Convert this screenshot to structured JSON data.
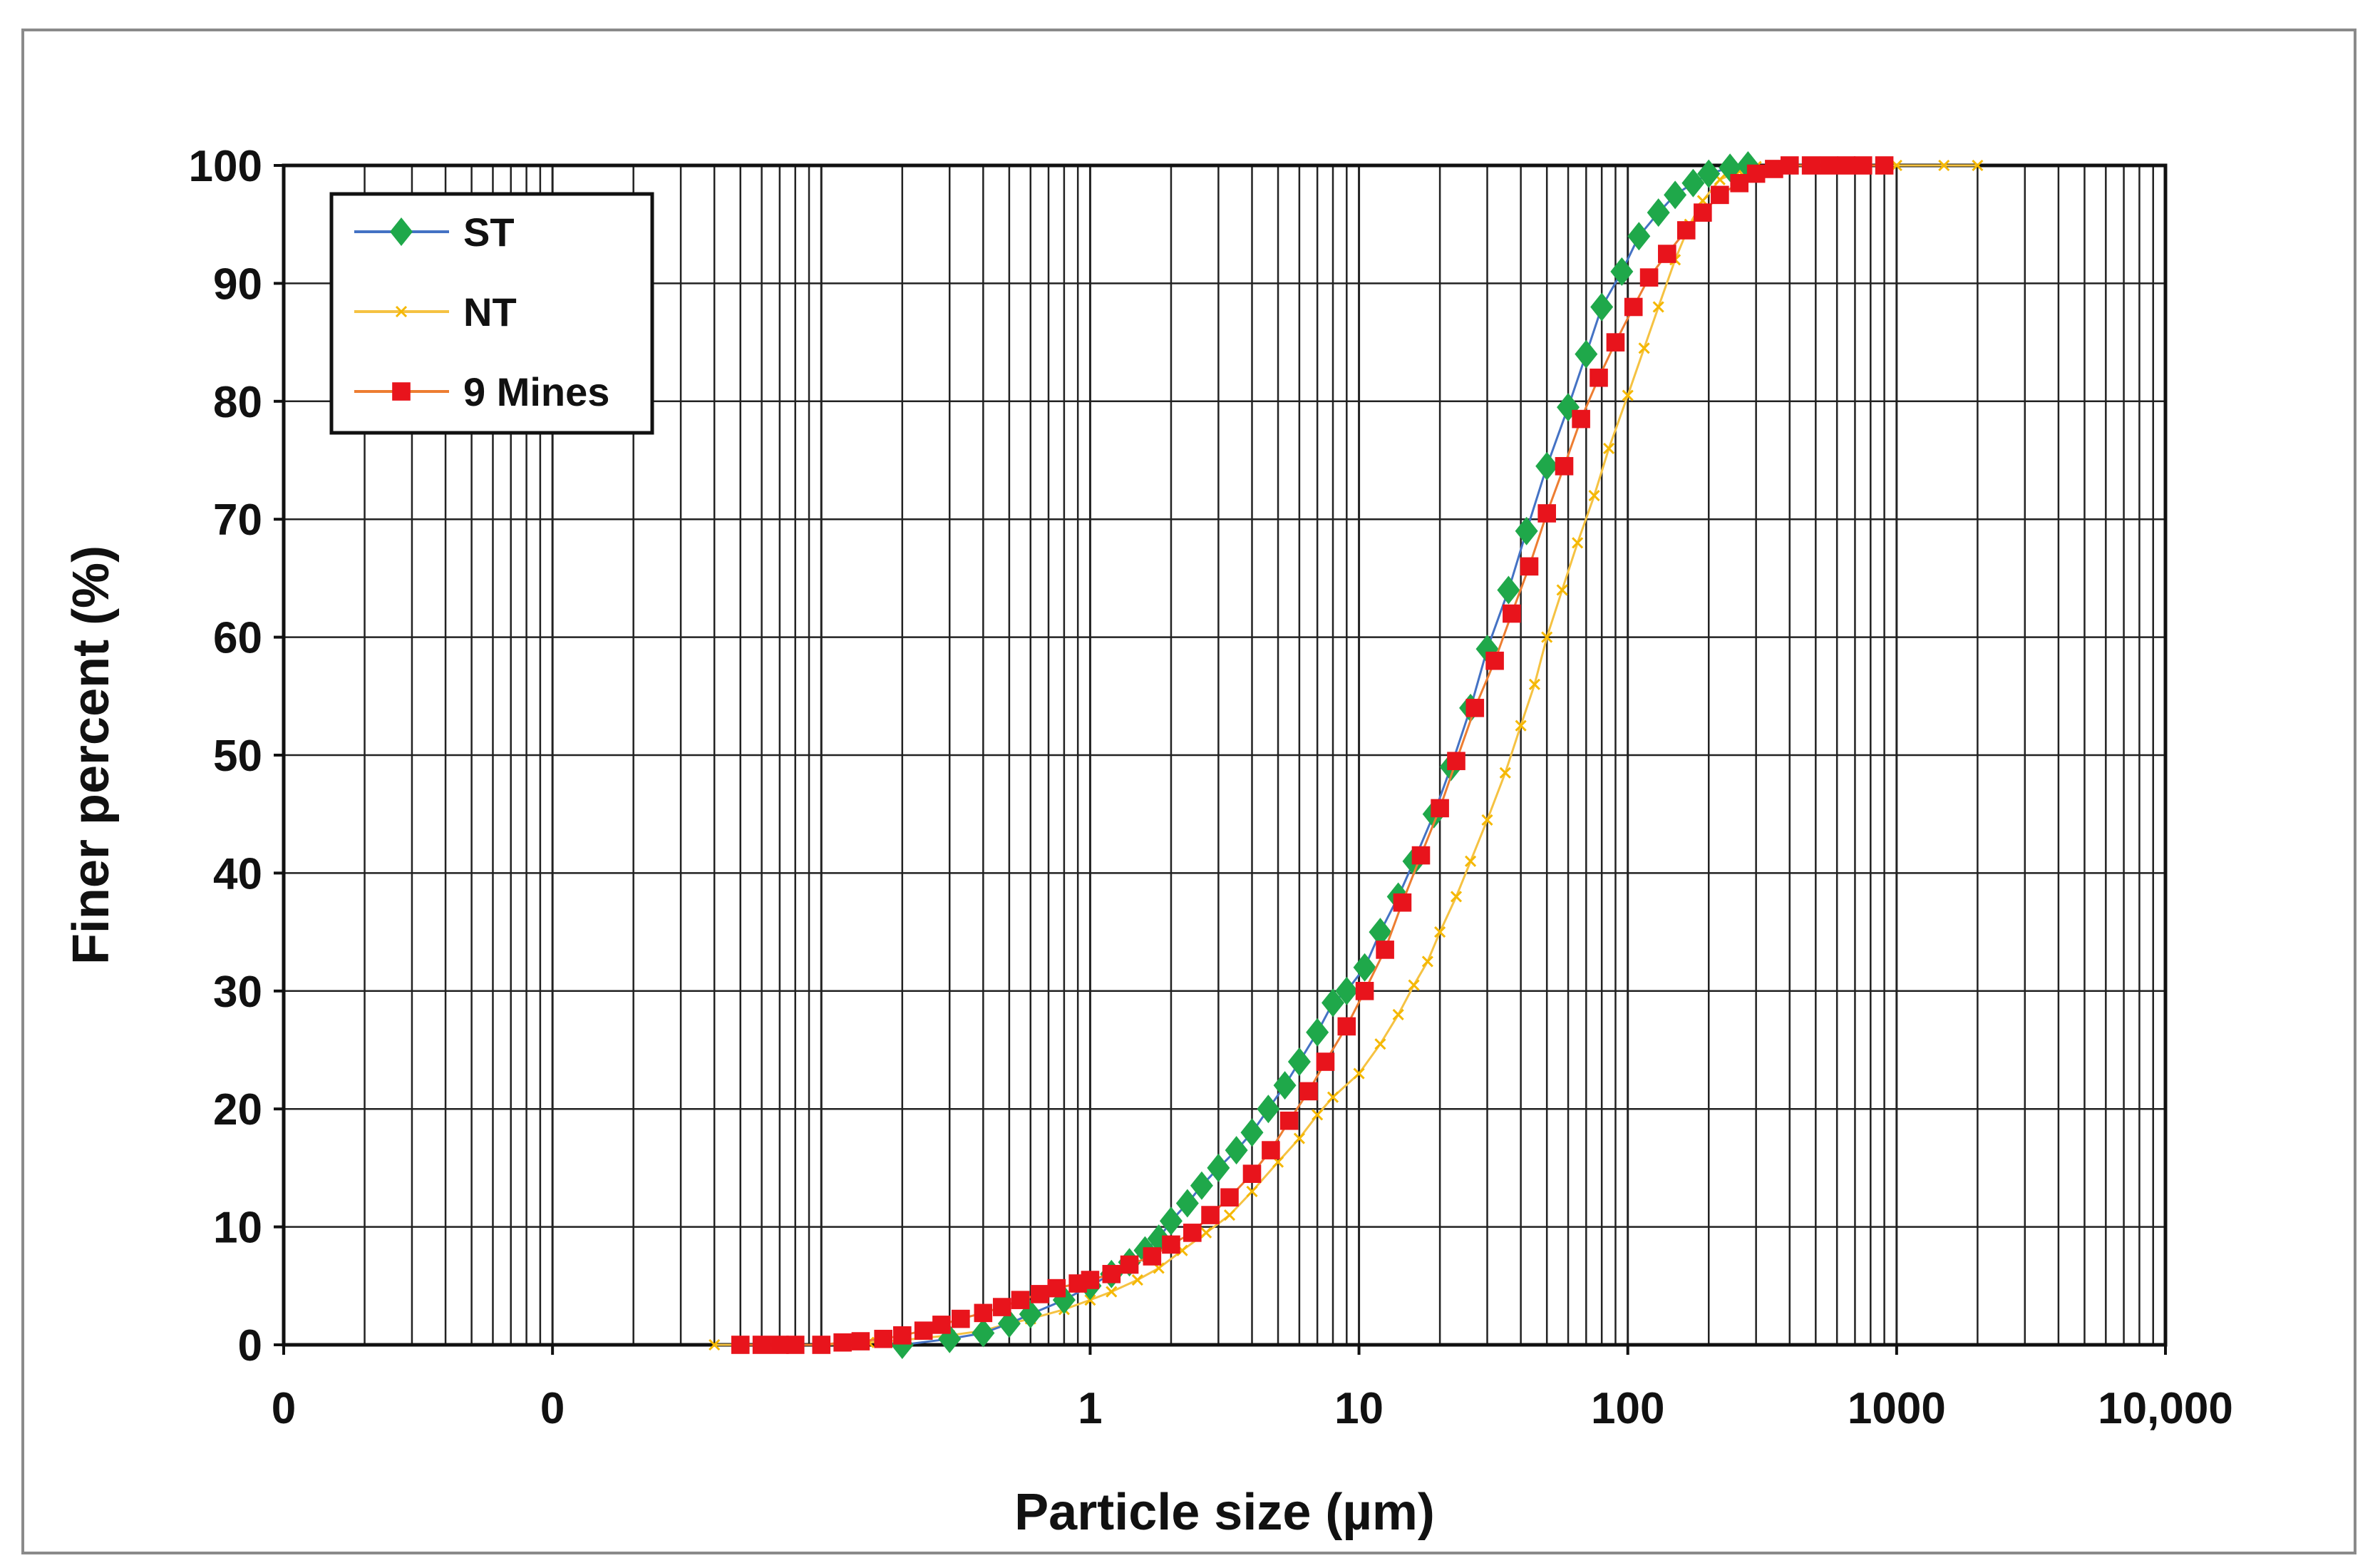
{
  "chart_data": {
    "type": "line",
    "title": "",
    "xlabel": "Particle size (µm)",
    "ylabel": "Finer percent (%)",
    "x_scale": "log",
    "xlim": [
      0.001,
      10000
    ],
    "ylim": [
      0,
      100
    ],
    "grid": true,
    "x_tick_values": [
      0.001,
      0.01,
      1,
      10,
      100,
      1000,
      10000
    ],
    "x_tick_labels": [
      "0",
      "0",
      "1",
      "10",
      "100",
      "1000",
      "10,000"
    ],
    "y_tick_values": [
      0,
      10,
      20,
      30,
      40,
      50,
      60,
      70,
      80,
      90,
      100
    ],
    "y_tick_labels": [
      "0",
      "10",
      "20",
      "30",
      "40",
      "50",
      "60",
      "70",
      "80",
      "90",
      "100"
    ],
    "legend_position": "top-left",
    "series": [
      {
        "name": "ST",
        "color": "#4472c4",
        "marker": "diamond",
        "marker_color": "#1fa84a",
        "x": [
          0.2,
          0.3,
          0.4,
          0.5,
          0.6,
          0.8,
          1,
          1.2,
          1.4,
          1.6,
          1.8,
          2,
          2.3,
          2.6,
          3,
          3.5,
          4,
          4.6,
          5.3,
          6,
          7,
          8,
          9,
          10.5,
          12,
          14,
          16,
          19,
          22,
          26,
          30,
          36,
          42,
          50,
          60,
          70,
          80,
          95,
          110,
          130,
          150,
          175,
          200,
          240,
          280
        ],
        "values": [
          0,
          0.5,
          1,
          1.8,
          2.6,
          3.8,
          5,
          6,
          7,
          8,
          9,
          10.5,
          12,
          13.5,
          15,
          16.5,
          18,
          20,
          22,
          24,
          26.5,
          29,
          30,
          32,
          35,
          38,
          41,
          45,
          49,
          54,
          59,
          64,
          69,
          74.5,
          79.5,
          84,
          88,
          91,
          94,
          96,
          97.5,
          98.5,
          99.3,
          99.8,
          100
        ]
      },
      {
        "name": "NT",
        "color": "#f5c242",
        "marker": "x",
        "marker_color": "#f5b800",
        "x": [
          0.04,
          0.06,
          0.08,
          0.1,
          0.15,
          0.2,
          0.3,
          0.4,
          0.5,
          0.6,
          0.8,
          1,
          1.2,
          1.5,
          1.8,
          2.2,
          2.7,
          3.3,
          4,
          5,
          6,
          7,
          8,
          10,
          12,
          14,
          16,
          18,
          20,
          23,
          26,
          30,
          35,
          40,
          45,
          50,
          57,
          65,
          75,
          85,
          100,
          115,
          130,
          150,
          170,
          190,
          220,
          260,
          300,
          400,
          500,
          700,
          1000,
          1500,
          2000
        ],
        "values": [
          0,
          0,
          0,
          0,
          0.2,
          0.4,
          0.8,
          1.2,
          1.8,
          2.2,
          3,
          3.8,
          4.5,
          5.5,
          6.5,
          8,
          9.5,
          11,
          13,
          15.5,
          17.5,
          19.5,
          21,
          23,
          25.5,
          28,
          30.5,
          32.5,
          35,
          38,
          41,
          44.5,
          48.5,
          52.5,
          56,
          60,
          64,
          68,
          72,
          76,
          80.5,
          84.5,
          88,
          92,
          95,
          97,
          98.8,
          99.5,
          99.9,
          100,
          100,
          100,
          100,
          100,
          100
        ]
      },
      {
        "name": "9 Mines",
        "color": "#ed7d31",
        "marker": "square",
        "marker_color": "#e8141c",
        "x": [
          0.05,
          0.06,
          0.07,
          0.08,
          0.1,
          0.12,
          0.14,
          0.17,
          0.2,
          0.24,
          0.28,
          0.33,
          0.4,
          0.47,
          0.55,
          0.65,
          0.75,
          0.9,
          1,
          1.2,
          1.4,
          1.7,
          2,
          2.4,
          2.8,
          3.3,
          4,
          4.7,
          5.5,
          6.5,
          7.5,
          9,
          10.5,
          12.5,
          14.5,
          17,
          20,
          23,
          27,
          32,
          37,
          43,
          50,
          58,
          67,
          78,
          90,
          105,
          120,
          140,
          165,
          190,
          220,
          260,
          300,
          350,
          400,
          480,
          560,
          650,
          750,
          900
        ],
        "values": [
          0,
          0,
          0,
          0,
          0,
          0.2,
          0.3,
          0.5,
          0.8,
          1.2,
          1.7,
          2.2,
          2.7,
          3.2,
          3.8,
          4.3,
          4.8,
          5.2,
          5.5,
          6,
          6.8,
          7.5,
          8.5,
          9.5,
          11,
          12.5,
          14.5,
          16.5,
          19,
          21.5,
          24,
          27,
          30,
          33.5,
          37.5,
          41.5,
          45.5,
          49.5,
          54,
          58,
          62,
          66,
          70.5,
          74.5,
          78.5,
          82,
          85,
          88,
          90.5,
          92.5,
          94.5,
          96,
          97.5,
          98.5,
          99.3,
          99.7,
          100,
          100,
          100,
          100,
          100,
          100
        ]
      }
    ]
  }
}
